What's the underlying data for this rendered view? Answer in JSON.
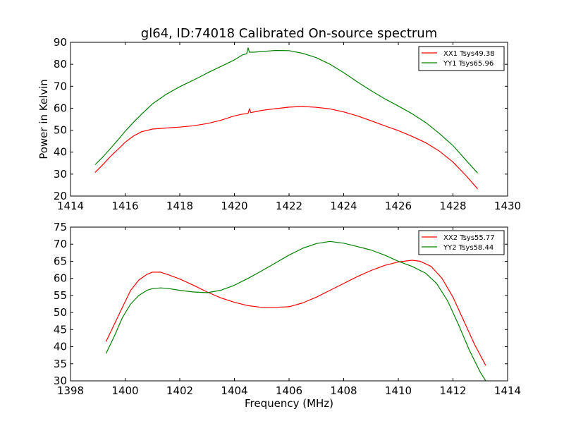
{
  "figure": {
    "title": "gl64, ID:74018 Calibrated On-source spectrum"
  },
  "chart_data": [
    {
      "type": "line",
      "ylabel": "Power in Kelvin",
      "xlabel": "",
      "xlim": [
        1414,
        1430
      ],
      "ylim": [
        20,
        90
      ],
      "xticks": [
        1414,
        1416,
        1418,
        1420,
        1422,
        1424,
        1426,
        1428,
        1430
      ],
      "yticks": [
        20,
        30,
        40,
        50,
        60,
        70,
        80,
        90
      ],
      "legend_position": "top-right",
      "grid": false,
      "series": [
        {
          "name": "XX1 Tsys49.38",
          "color": "#ff0000",
          "x": [
            1414.9,
            1415.2,
            1415.5,
            1415.8,
            1416.0,
            1416.3,
            1416.6,
            1417.0,
            1417.5,
            1418.0,
            1418.5,
            1419.0,
            1419.5,
            1420.0,
            1420.3,
            1420.5,
            1420.55,
            1420.6,
            1420.8,
            1421.0,
            1421.5,
            1422.0,
            1422.5,
            1423.0,
            1423.5,
            1424.0,
            1424.5,
            1425.0,
            1425.5,
            1426.0,
            1426.5,
            1427.0,
            1427.5,
            1428.0,
            1428.5,
            1428.9
          ],
          "y": [
            30.8,
            34.5,
            38.5,
            42.0,
            44.5,
            47.3,
            49.3,
            50.5,
            51.0,
            51.4,
            52.0,
            53.0,
            54.5,
            56.5,
            57.3,
            57.6,
            59.8,
            58.0,
            58.5,
            59.0,
            59.8,
            60.5,
            60.8,
            60.4,
            59.7,
            58.3,
            56.5,
            54.3,
            52.0,
            49.8,
            47.2,
            44.3,
            40.5,
            35.5,
            29.0,
            23.3
          ]
        },
        {
          "name": "YY1 Tsys65.96",
          "color": "#008000",
          "x": [
            1414.9,
            1415.2,
            1415.5,
            1415.8,
            1416.0,
            1416.3,
            1416.6,
            1417.0,
            1417.5,
            1418.0,
            1418.5,
            1419.0,
            1419.5,
            1420.0,
            1420.3,
            1420.45,
            1420.5,
            1420.55,
            1420.7,
            1421.0,
            1421.5,
            1422.0,
            1422.5,
            1423.0,
            1423.5,
            1424.0,
            1424.5,
            1425.0,
            1425.5,
            1426.0,
            1426.5,
            1427.0,
            1427.5,
            1428.0,
            1428.5,
            1428.9
          ],
          "y": [
            34.3,
            38.0,
            42.2,
            46.5,
            49.5,
            53.5,
            57.2,
            62.0,
            66.3,
            69.8,
            72.8,
            76.0,
            79.0,
            82.0,
            84.3,
            84.8,
            87.5,
            85.5,
            85.5,
            85.8,
            86.3,
            86.2,
            85.0,
            83.0,
            80.0,
            76.2,
            72.0,
            68.0,
            64.3,
            61.0,
            57.5,
            53.5,
            48.5,
            43.0,
            36.0,
            30.5
          ]
        }
      ]
    },
    {
      "type": "line",
      "xlabel": "Frequency (MHz)",
      "ylabel": "",
      "xlim": [
        1398,
        1414
      ],
      "ylim": [
        30,
        75
      ],
      "xticks": [
        1398,
        1400,
        1402,
        1404,
        1406,
        1408,
        1410,
        1412,
        1414
      ],
      "yticks": [
        30,
        35,
        40,
        45,
        50,
        55,
        60,
        65,
        70,
        75
      ],
      "legend_position": "top-right",
      "grid": false,
      "series": [
        {
          "name": "XX2 Tsys55.77",
          "color": "#ff0000",
          "x": [
            1399.3,
            1399.6,
            1399.9,
            1400.2,
            1400.5,
            1400.8,
            1401.0,
            1401.3,
            1401.6,
            1402.0,
            1402.5,
            1403.0,
            1403.5,
            1404.0,
            1404.5,
            1405.0,
            1405.5,
            1406.0,
            1406.5,
            1407.0,
            1407.5,
            1408.0,
            1408.5,
            1409.0,
            1409.5,
            1410.0,
            1410.5,
            1410.8,
            1411.2,
            1411.6,
            1412.0,
            1412.4,
            1412.8,
            1413.2
          ],
          "y": [
            41.5,
            46.5,
            51.5,
            56.5,
            59.5,
            61.2,
            61.8,
            61.8,
            61.0,
            59.8,
            58.0,
            56.0,
            54.3,
            53.0,
            52.0,
            51.5,
            51.5,
            51.7,
            52.8,
            54.5,
            56.5,
            58.5,
            60.5,
            62.3,
            63.8,
            64.8,
            65.3,
            65.0,
            63.5,
            60.0,
            54.5,
            47.5,
            40.5,
            34.5
          ]
        },
        {
          "name": "YY2 Tsys58.44",
          "color": "#008000",
          "x": [
            1399.3,
            1399.6,
            1399.9,
            1400.2,
            1400.5,
            1400.8,
            1401.0,
            1401.3,
            1401.6,
            1402.0,
            1402.5,
            1403.0,
            1403.5,
            1404.0,
            1404.5,
            1405.0,
            1405.5,
            1406.0,
            1406.5,
            1407.0,
            1407.5,
            1408.0,
            1408.5,
            1409.0,
            1409.5,
            1410.0,
            1410.5,
            1411.0,
            1411.4,
            1411.8,
            1412.2,
            1412.6,
            1413.0,
            1413.2
          ],
          "y": [
            38.0,
            43.0,
            48.5,
            52.5,
            55.0,
            56.5,
            57.0,
            57.2,
            57.0,
            56.5,
            56.0,
            55.8,
            56.5,
            58.0,
            60.0,
            62.2,
            64.5,
            66.8,
            68.8,
            70.2,
            70.8,
            70.3,
            69.3,
            68.3,
            66.8,
            65.0,
            63.5,
            61.5,
            58.5,
            53.5,
            46.5,
            39.0,
            32.5,
            30.0
          ]
        }
      ]
    }
  ]
}
